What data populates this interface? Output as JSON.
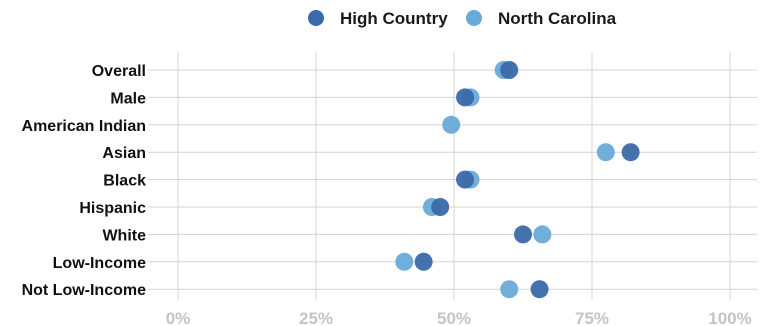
{
  "chart_data": {
    "type": "scatter",
    "orientation": "horizontal-dot",
    "categories": [
      "Overall",
      "Male",
      "American Indian",
      "Asian",
      "Black",
      "Hispanic",
      "White",
      "Low-Income",
      "Not Low-Income"
    ],
    "series": [
      {
        "name": "High Country",
        "color": "#3a6aa8",
        "values": [
          0.6,
          0.52,
          null,
          0.82,
          0.52,
          0.475,
          0.625,
          0.445,
          0.655
        ]
      },
      {
        "name": "North Carolina",
        "color": "#6aaad8",
        "values": [
          0.59,
          0.53,
          0.495,
          0.775,
          0.53,
          0.46,
          0.66,
          0.41,
          0.6
        ]
      }
    ],
    "x_ticks": [
      "0%",
      "25%",
      "50%",
      "75%",
      "100%"
    ],
    "xlim": [
      0,
      1
    ],
    "grid": true,
    "legend_position": "top"
  }
}
